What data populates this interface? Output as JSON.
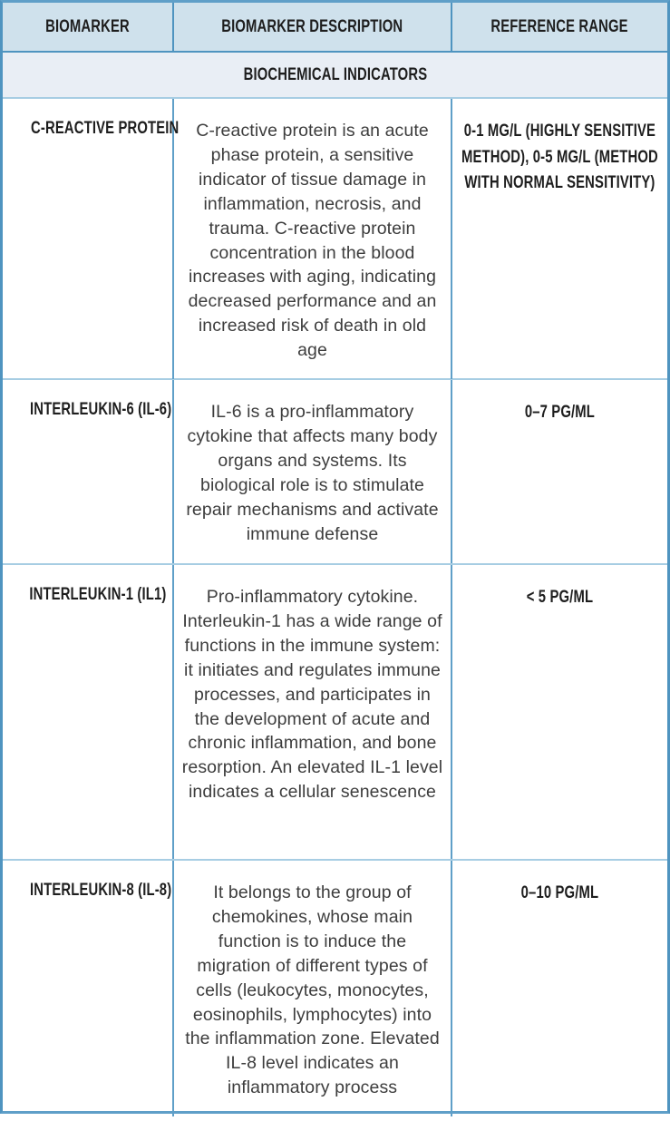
{
  "theme": {
    "header_bg": "#cfe1ec",
    "section_bg": "#e9eef5",
    "border_dark": "#4f94c0",
    "border_mid": "#5f9fc8",
    "border_light": "#a7cde3",
    "ink": "#1e1e1e"
  },
  "table": {
    "columns": [
      {
        "label": "BIOMARKER"
      },
      {
        "label": "BIOMARKER DESCRIPTION"
      },
      {
        "label": "REFERENCE RANGE"
      }
    ],
    "section_title": "BIOCHEMICAL INDICATORS",
    "rows": [
      {
        "biomarker": "C-REACTIVE PROTEIN",
        "description": "C-reactive protein is an acute phase protein, a sensitive indicator of tissue damage in inflammation, necrosis, and trauma. C-reactive protein concentration in the blood increases with aging, indicating decreased performance and an increased risk of death in old age",
        "reference": "0-1 MG/L (HIGHLY SENSITIVE METHOD), 0-5 MG/L (METHOD WITH NORMAL SENSITIVITY)"
      },
      {
        "biomarker": "INTERLEUKIN-6 (IL-6)",
        "description": "IL-6 is a pro-inflammatory cytokine that affects many body organs and systems. Its biological role is to stimulate repair mechanisms and activate immune defense",
        "reference": "0–7 PG/ML"
      },
      {
        "biomarker": "INTERLEUKIN-1 (IL1)",
        "description": "Pro-inflammatory cytokine. Interleukin-1 has a wide range of functions in the immune system: it initiates and regulates immune processes, and participates in the development of acute and chronic inflammation, and bone resorption. An elevated IL-1 level indicates a cellular senescence",
        "reference": "< 5 PG/ML"
      },
      {
        "biomarker": "INTERLEUKIN-8 (IL-8)",
        "description": "It belongs to the group of chemokines, whose main function is to induce the migration of different types of cells (leukocytes, monocytes, eosinophils, lymphocytes) into the inflammation zone. Elevated IL-8 level indicates an inflammatory process",
        "reference": "0–10 PG/ML"
      }
    ]
  }
}
